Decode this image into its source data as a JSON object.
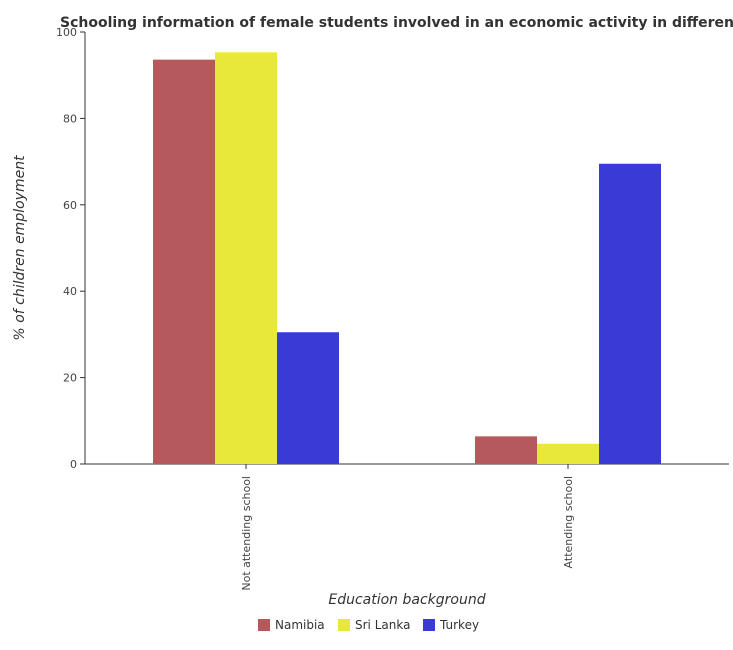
{
  "chart_data": {
    "type": "bar",
    "title": "Schooling information of female students involved in an economic activity in different countries",
    "xlabel": "Education background",
    "ylabel": "% of children employment",
    "categories": [
      "Not attending school",
      "Attending school"
    ],
    "series": [
      {
        "name": "Namibia",
        "color": "#b5595c",
        "values": [
          93.6,
          6.4
        ]
      },
      {
        "name": "Sri Lanka",
        "color": "#e8e83a",
        "values": [
          95.3,
          4.7
        ]
      },
      {
        "name": "Turkey",
        "color": "#3a3ad6",
        "values": [
          30.5,
          69.5
        ]
      }
    ],
    "ylim": [
      0,
      100
    ],
    "yticks": [
      0,
      20,
      40,
      60,
      80,
      100
    ],
    "grid": false,
    "legend": "bottom-center"
  }
}
